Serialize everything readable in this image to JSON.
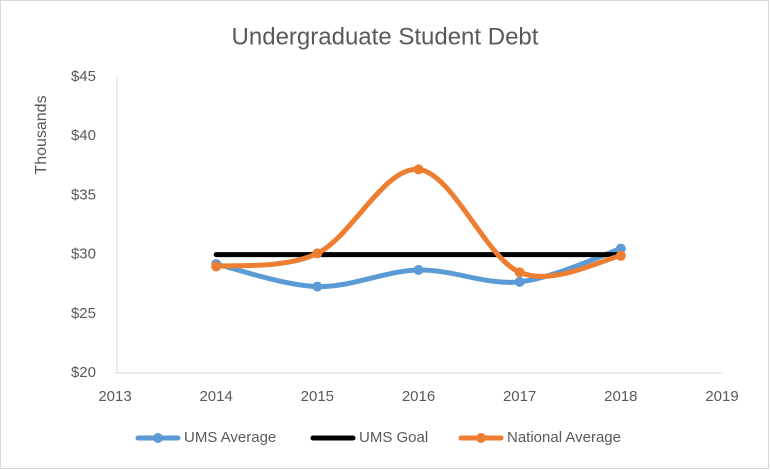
{
  "chart_data": {
    "type": "line",
    "title": "Undergraduate Student Debt",
    "y_label": "Thousands",
    "x": [
      2014,
      2015,
      2016,
      2017,
      2018
    ],
    "series": [
      {
        "name": "UMS Average",
        "color": "#5b9bd5",
        "marker": true,
        "smooth": true,
        "values": [
          29.2,
          27.3,
          28.7,
          27.7,
          30.5
        ]
      },
      {
        "name": "UMS Goal",
        "color": "#000000",
        "marker": false,
        "smooth": true,
        "values": [
          30,
          30,
          30,
          30,
          30
        ]
      },
      {
        "name": "National Average",
        "color": "#ed7d31",
        "marker": true,
        "smooth": true,
        "values": [
          29.0,
          30.1,
          37.2,
          28.5,
          29.9
        ]
      }
    ],
    "xlim": [
      2013,
      2019
    ],
    "xticks": [
      2013,
      2014,
      2015,
      2016,
      2017,
      2018,
      2019
    ],
    "ylim": [
      20,
      45
    ],
    "yticks": [
      {
        "value": 20,
        "label": "$20"
      },
      {
        "value": 25,
        "label": "$25"
      },
      {
        "value": 30,
        "label": "$30"
      },
      {
        "value": 35,
        "label": "$35"
      },
      {
        "value": 40,
        "label": "$40"
      },
      {
        "value": 45,
        "label": "$45"
      }
    ],
    "grid": false,
    "legend": "bottom"
  }
}
